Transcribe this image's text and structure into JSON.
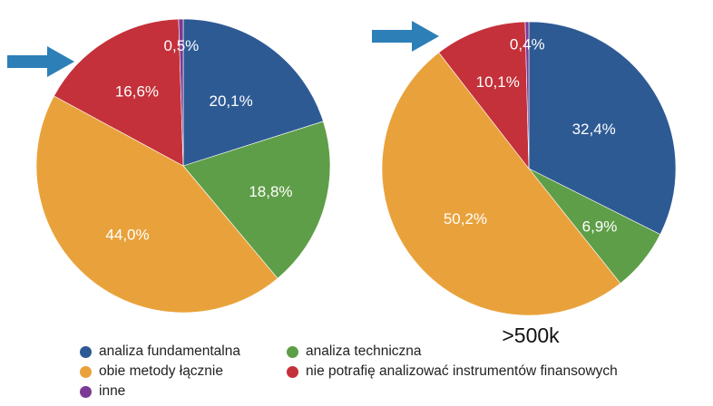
{
  "colors": {
    "analiza_fundamentalna": "#2e5a94",
    "analiza_techniczna": "#5f9e48",
    "obie_metody": "#e9a23b",
    "nie_potrafie": "#c4313a",
    "inne": "#7b3a94",
    "arrow": "#2d7fb8"
  },
  "legend": [
    {
      "label": "analiza fundamentalna",
      "color": "#2e5a94"
    },
    {
      "label": "analiza techniczna",
      "color": "#5f9e48"
    },
    {
      "label": "obie metody łącznie",
      "color": "#e9a23b"
    },
    {
      "label": "nie potrafię analizować instrumentów finansowych",
      "color": "#c4313a"
    },
    {
      "label": "inne",
      "color": "#7b3a94"
    }
  ],
  "chart_data": [
    {
      "type": "pie",
      "title": "",
      "caption": "",
      "categories": [
        "analiza fundamentalna",
        "analiza techniczna",
        "obie metody łącznie",
        "nie potrafię analizować instrumentów finansowych",
        "inne"
      ],
      "values": [
        20.1,
        18.8,
        44.0,
        16.6,
        0.5
      ],
      "labels": [
        "20,1%",
        "18,8%",
        "44,0%",
        "16,6%",
        "0,5%"
      ],
      "colors": [
        "#2e5a94",
        "#5f9e48",
        "#e9a23b",
        "#c4313a",
        "#7b3a94"
      ],
      "arrow": true
    },
    {
      "type": "pie",
      "title": "",
      "caption": ">500k",
      "categories": [
        "analiza fundamentalna",
        "analiza techniczna",
        "obie metody łącznie",
        "nie potrafię analizować instrumentów finansowych",
        "inne"
      ],
      "values": [
        32.4,
        6.9,
        50.2,
        10.1,
        0.4
      ],
      "labels": [
        "32,4%",
        "6,9%",
        "50,2%",
        "10,1%",
        "0,4%"
      ],
      "colors": [
        "#2e5a94",
        "#5f9e48",
        "#e9a23b",
        "#c4313a",
        "#7b3a94"
      ],
      "arrow": true
    }
  ]
}
